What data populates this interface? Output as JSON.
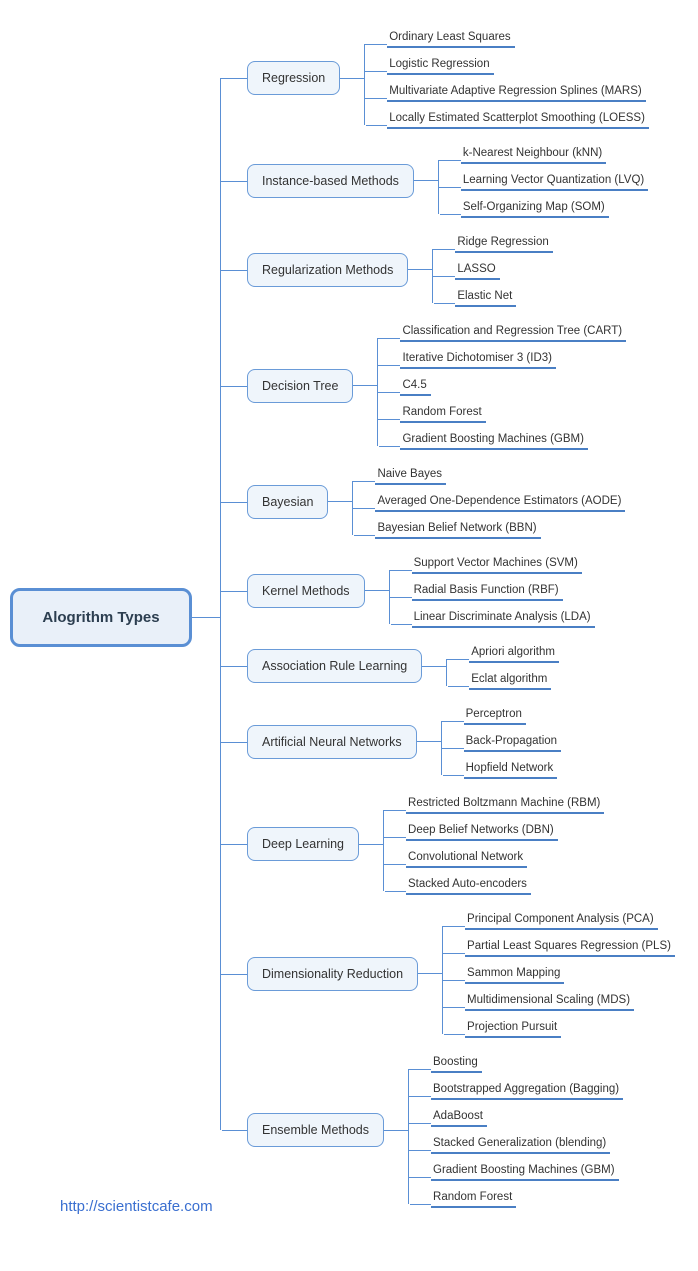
{
  "type": "mindmap",
  "colors": {
    "node_border": "#5a8fd4",
    "node_fill": "#e9f0f9",
    "cat_border": "#6a9bd8",
    "cat_fill": "#eff5fb",
    "connector": "#5a8fd4",
    "leaf_underline": "#4a7fc4",
    "text": "#333333",
    "link": "#3a6fd0",
    "background": "#ffffff"
  },
  "fonts": {
    "root_size_pt": 15,
    "root_weight": "bold",
    "category_size_pt": 12.5,
    "leaf_size_pt": 11.5,
    "source_size_pt": 15
  },
  "root": {
    "label": "Alogrithm Types"
  },
  "source_url": "http://scientistcafe.com",
  "categories": [
    {
      "label": "Regression",
      "leaves": [
        "Ordinary Least Squares",
        "Logistic Regression",
        "Multivariate Adaptive Regression Splines (MARS)",
        "Locally Estimated Scatterplot Smoothing (LOESS)"
      ]
    },
    {
      "label": "Instance-based Methods",
      "leaves": [
        "k-Nearest Neighbour (kNN)",
        "Learning Vector Quantization (LVQ)",
        "Self-Organizing Map (SOM)"
      ]
    },
    {
      "label": "Regularization Methods",
      "leaves": [
        "Ridge Regression",
        "LASSO",
        "Elastic Net"
      ]
    },
    {
      "label": "Decision Tree",
      "leaves": [
        "Classification and Regression Tree (CART)",
        "Iterative Dichotomiser 3 (ID3)",
        "C4.5",
        "Random Forest",
        "Gradient Boosting Machines (GBM)"
      ]
    },
    {
      "label": "Bayesian",
      "leaves": [
        "Naive Bayes",
        "Averaged One-Dependence Estimators (AODE)",
        "Bayesian Belief Network (BBN)"
      ]
    },
    {
      "label": "Kernel Methods",
      "leaves": [
        "Support Vector Machines (SVM)",
        "Radial Basis Function (RBF)",
        "Linear Discriminate Analysis (LDA)"
      ]
    },
    {
      "label": "Association Rule Learning",
      "leaves": [
        "Apriori algorithm",
        "Eclat algorithm"
      ]
    },
    {
      "label": "Artificial Neural Networks",
      "leaves": [
        "Perceptron",
        "Back-Propagation",
        "Hopfield Network"
      ]
    },
    {
      "label": "Deep Learning",
      "leaves": [
        "Restricted Boltzmann Machine (RBM)",
        "Deep Belief Networks (DBN)",
        "Convolutional Network",
        "Stacked Auto-encoders"
      ]
    },
    {
      "label": "Dimensionality Reduction",
      "leaves": [
        "Principal Component Analysis (PCA)",
        "Partial Least Squares Regression (PLS)",
        "Sammon Mapping",
        "Multidimensional Scaling (MDS)",
        "Projection Pursuit"
      ]
    },
    {
      "label": "Ensemble Methods",
      "leaves": [
        "Boosting",
        "Bootstrapped Aggregation (Bagging)",
        "AdaBoost",
        "Stacked Generalization (blending)",
        "Gradient Boosting Machines (GBM)",
        "Random Forest"
      ]
    }
  ]
}
